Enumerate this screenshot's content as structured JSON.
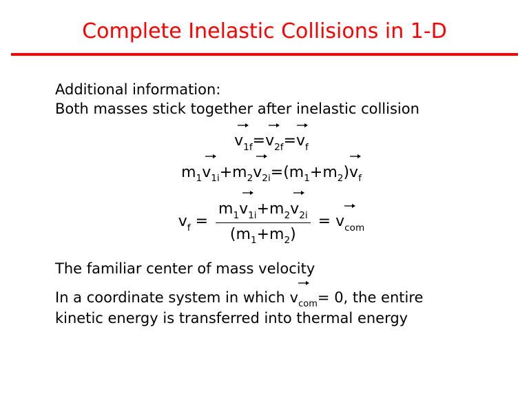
{
  "title": {
    "text": "Complete Inelastic Collisions in 1-D",
    "color": "#ff0000",
    "fontsize": 30
  },
  "rule": {
    "color": "#ff0000",
    "thickness": 4
  },
  "intro": {
    "line1": "Additional information:",
    "line2": "Both masses stick together after inelastic collision"
  },
  "eq1": {
    "v1f": "v",
    "v1f_sub": "1f",
    "eq1": "=",
    "v2f": "v",
    "v2f_sub": "2f",
    "eq2": "=",
    "vf": "v",
    "vf_sub": "f"
  },
  "eq2": {
    "m1": "m",
    "m1_sub": "1",
    "v1i": "v",
    "v1i_sub": "1i",
    "plus": "+",
    "m2": "m",
    "m2_sub": "2",
    "v2i": "v",
    "v2i_sub": "2i",
    "eq": "=(",
    "m1b": "m",
    "m1b_sub": "1",
    "plus2": "+",
    "m2b": "m",
    "m2b_sub": "2",
    "close": ")",
    "vf": "v",
    "vf_sub": "f"
  },
  "eq3": {
    "lhs": "v",
    "lhs_sub": "f",
    "lhs_eq": " = ",
    "num_m1": "m",
    "num_m1_sub": "1",
    "num_v1i": "v",
    "num_v1i_sub": "1i",
    "num_plus": "+",
    "num_m2": "m",
    "num_m2_sub": "2",
    "num_v2i": "v",
    "num_v2i_sub": "2i",
    "den_open": "(",
    "den_m1": "m",
    "den_m1_sub": "1",
    "den_plus": "+",
    "den_m2": "m",
    "den_m2_sub": "2",
    "den_close": ")",
    "rhs_eq": " = ",
    "vcom": "v",
    "vcom_sub": "com"
  },
  "outro": {
    "line1": "The familiar center of mass velocity",
    "line2a": "In a coordinate system in which ",
    "line2_v": "v",
    "line2_v_sub": "com",
    "line2b": "= 0, the entire",
    "line3": "kinetic energy is transferred into thermal energy"
  },
  "style": {
    "body_fontsize": 21,
    "eq_fontsize": 22,
    "text_color": "#000000",
    "background": "#ffffff",
    "arrow_width": 18,
    "arrow_height": 8
  }
}
